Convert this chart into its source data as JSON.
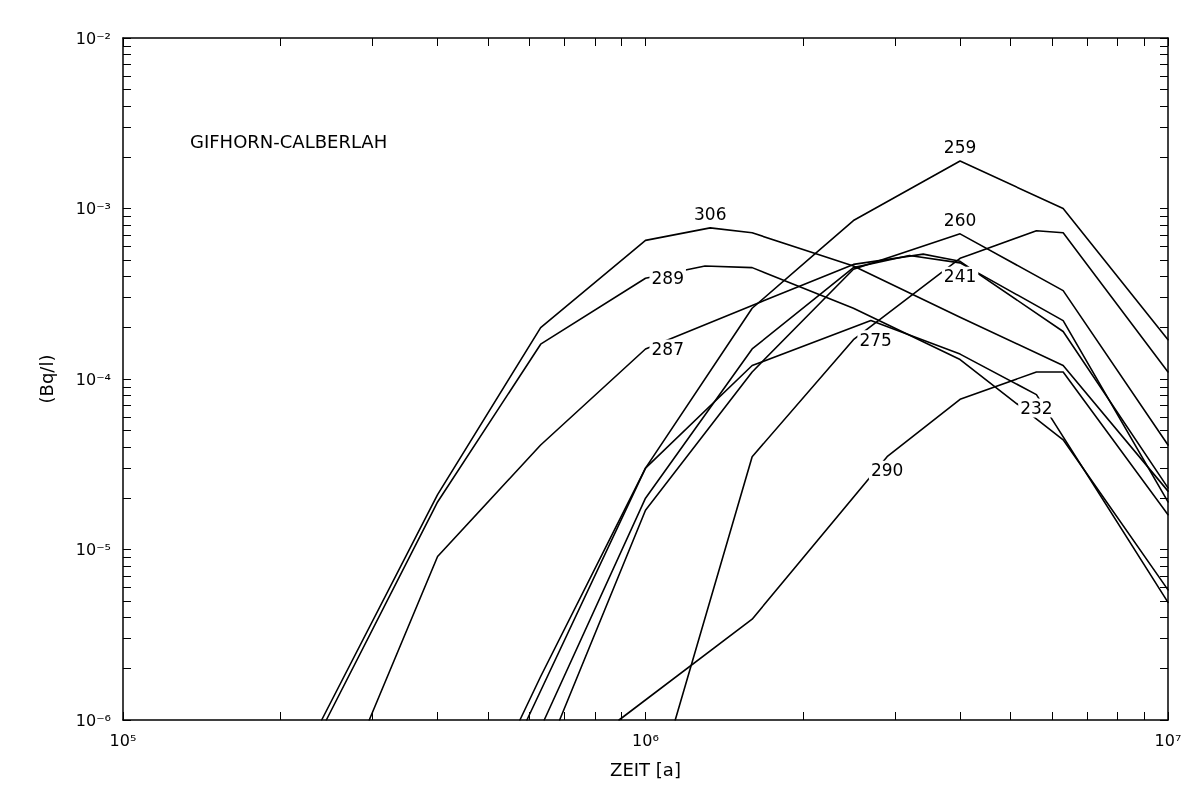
{
  "chart_data": {
    "type": "line",
    "xlabel": "ZEIT [a]",
    "ylabel": "(Bq/l)",
    "log": "xy",
    "marker": "none",
    "line_style": "solid",
    "annotations": [
      "GIFHORN-CALBERLAH"
    ],
    "xlim": [
      100000,
      10000000
    ],
    "ylim": [
      1e-06,
      0.01
    ],
    "xticks": [
      {
        "value": 100000,
        "label": "10⁵"
      },
      {
        "value": 200000,
        "label": null
      },
      {
        "value": 300000,
        "label": null
      },
      {
        "value": 400000,
        "label": null
      },
      {
        "value": 500000,
        "label": null
      },
      {
        "value": 600000,
        "label": null
      },
      {
        "value": 700000,
        "label": null
      },
      {
        "value": 800000,
        "label": null
      },
      {
        "value": 900000,
        "label": null
      },
      {
        "value": 1000000,
        "label": "10⁶"
      },
      {
        "value": 2000000,
        "label": null
      },
      {
        "value": 3000000,
        "label": null
      },
      {
        "value": 4000000,
        "label": null
      },
      {
        "value": 5000000,
        "label": null
      },
      {
        "value": 6000000,
        "label": null
      },
      {
        "value": 7000000,
        "label": null
      },
      {
        "value": 8000000,
        "label": null
      },
      {
        "value": 9000000,
        "label": null
      },
      {
        "value": 10000000,
        "label": "10⁷"
      }
    ],
    "yticks": [
      {
        "value": 1e-06,
        "label": "10⁻⁶"
      },
      {
        "value": 2e-06,
        "label": null
      },
      {
        "value": 3e-06,
        "label": null
      },
      {
        "value": 4e-06,
        "label": null
      },
      {
        "value": 5e-06,
        "label": null
      },
      {
        "value": 6e-06,
        "label": null
      },
      {
        "value": 7e-06,
        "label": null
      },
      {
        "value": 8e-06,
        "label": null
      },
      {
        "value": 9e-06,
        "label": null
      },
      {
        "value": 1e-05,
        "label": "10⁻⁵"
      },
      {
        "value": 2e-05,
        "label": null
      },
      {
        "value": 3e-05,
        "label": null
      },
      {
        "value": 4e-05,
        "label": null
      },
      {
        "value": 5e-05,
        "label": null
      },
      {
        "value": 6e-05,
        "label": null
      },
      {
        "value": 7e-05,
        "label": null
      },
      {
        "value": 8e-05,
        "label": null
      },
      {
        "value": 9e-05,
        "label": null
      },
      {
        "value": 0.0001,
        "label": "10⁻⁴"
      },
      {
        "value": 0.0002,
        "label": null
      },
      {
        "value": 0.0003,
        "label": null
      },
      {
        "value": 0.0004,
        "label": null
      },
      {
        "value": 0.0005,
        "label": null
      },
      {
        "value": 0.0006,
        "label": null
      },
      {
        "value": 0.0007,
        "label": null
      },
      {
        "value": 0.0008,
        "label": null
      },
      {
        "value": 0.0009,
        "label": null
      },
      {
        "value": 0.001,
        "label": "10⁻³"
      },
      {
        "value": 0.002,
        "label": null
      },
      {
        "value": 0.003,
        "label": null
      },
      {
        "value": 0.004,
        "label": null
      },
      {
        "value": 0.005,
        "label": null
      },
      {
        "value": 0.006,
        "label": null
      },
      {
        "value": 0.007,
        "label": null
      },
      {
        "value": 0.008,
        "label": null
      },
      {
        "value": 0.009,
        "label": null
      },
      {
        "value": 0.01,
        "label": "10⁻²"
      }
    ],
    "series": [
      {
        "name": "306",
        "color": "#000000",
        "x": [
          240000,
          400000,
          630000,
          1000000,
          1330000,
          1600000,
          2500000,
          4000000,
          6300000,
          10000000
        ],
        "values": [
          1e-06,
          2.1e-05,
          0.0002,
          0.00065,
          0.00077,
          0.00072,
          0.00046,
          0.00023,
          0.00012,
          2.2e-05
        ]
      },
      {
        "name": "289",
        "color": "#000000",
        "x": [
          245000,
          400000,
          630000,
          1000000,
          1300000,
          1600000,
          2500000,
          4000000,
          6300000,
          10000000
        ],
        "values": [
          1e-06,
          1.9e-05,
          0.00016,
          0.00039,
          0.00046,
          0.00045,
          0.00026,
          0.00013,
          4.4e-05,
          5.8e-06
        ]
      },
      {
        "name": "287",
        "color": "#000000",
        "x": [
          296000,
          400000,
          630000,
          1000000,
          1600000,
          2500000,
          3400000,
          4000000,
          6300000,
          10000000
        ],
        "values": [
          1e-06,
          9.1e-06,
          4.1e-05,
          0.00015,
          0.00027,
          0.00047,
          0.00054,
          0.00049,
          0.00019,
          2.3e-05
        ]
      },
      {
        "name": "259",
        "color": "#000000",
        "x": [
          575000,
          630000,
          1000000,
          1600000,
          2500000,
          4000000,
          6300000,
          10000000
        ],
        "values": [
          1e-06,
          1.8e-06,
          3e-05,
          0.00026,
          0.00085,
          0.0019,
          0.001,
          0.00017
        ]
      },
      {
        "name": "260",
        "color": "#000000",
        "x": [
          685000,
          1000000,
          1600000,
          2500000,
          4000000,
          6300000,
          10000000
        ],
        "values": [
          1e-06,
          1.7e-05,
          0.00011,
          0.00044,
          0.00071,
          0.00033,
          4.1e-05
        ]
      },
      {
        "name": "241",
        "color": "#000000",
        "x": [
          640000,
          1000000,
          1600000,
          2500000,
          3200000,
          4000000,
          6300000,
          10000000
        ],
        "values": [
          1e-06,
          2e-05,
          0.00015,
          0.00045,
          0.00053,
          0.00048,
          0.00022,
          1.9e-05
        ]
      },
      {
        "name": "275",
        "color": "#000000",
        "x": [
          1140000,
          1600000,
          2500000,
          4000000,
          5600000,
          6300000,
          10000000
        ],
        "values": [
          1e-06,
          3.5e-05,
          0.00017,
          0.00051,
          0.00074,
          0.00072,
          0.00011
        ]
      },
      {
        "name": "232",
        "color": "#000000",
        "x": [
          593000,
          1000000,
          1600000,
          2700000,
          4000000,
          5600000,
          10000000
        ],
        "values": [
          1e-06,
          3e-05,
          0.00012,
          0.00022,
          0.00014,
          8.1e-05,
          4.9e-06
        ]
      },
      {
        "name": "290",
        "color": "#000000",
        "x": [
          890000,
          1600000,
          2900000,
          4000000,
          5600000,
          6300000,
          10000000
        ],
        "values": [
          1e-06,
          3.9e-06,
          3.5e-05,
          7.6e-05,
          0.00011,
          0.00011,
          1.6e-05
        ]
      }
    ]
  }
}
